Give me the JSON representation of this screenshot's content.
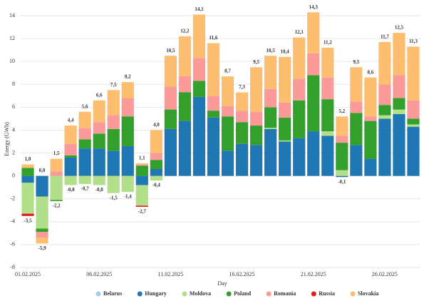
{
  "chart_data": {
    "type": "stacked_bar",
    "y_label": "Energy (GWh)",
    "x_label": "Day",
    "categories": [
      "01.02.2025",
      null,
      null,
      null,
      null,
      "06.02.2025",
      null,
      null,
      null,
      null,
      "11.02.2025",
      null,
      null,
      null,
      null,
      "16.02.2025",
      null,
      null,
      null,
      null,
      "21.02.2025",
      null,
      null,
      null,
      null,
      "26.02.2025",
      null,
      null
    ],
    "ylim": [
      -8,
      14
    ],
    "yticks": [
      -8,
      -6,
      -4,
      -2,
      0,
      2,
      4,
      6,
      8,
      10,
      12,
      14
    ],
    "grid": true,
    "series": [
      {
        "name": "Belarus",
        "color": "#a6cee3",
        "values": [
          0,
          0,
          0,
          0,
          0,
          0,
          0,
          0,
          0,
          0,
          0,
          0,
          0,
          0,
          0,
          0,
          0,
          0,
          0,
          0,
          0,
          0,
          0,
          0,
          0,
          0,
          0,
          0
        ]
      },
      {
        "name": "Hungary",
        "color": "#1f78b4",
        "values": [
          -0.6,
          -1.8,
          0,
          1.6,
          2.4,
          2.4,
          2.2,
          2.6,
          -0.8,
          0.6,
          4.1,
          4.8,
          6.9,
          5.1,
          2.2,
          2.8,
          2.7,
          4.1,
          3.0,
          3.3,
          3.9,
          3.5,
          -0.1,
          2.7,
          1.5,
          5.0,
          5.4,
          4.3
        ]
      },
      {
        "name": "Moldova",
        "color": "#b2df8a",
        "values": [
          -2.7,
          -2.8,
          -2.1,
          -0.8,
          -0.7,
          -0.8,
          -1.5,
          -1.4,
          -1.8,
          -0.4,
          0,
          0,
          0,
          0,
          0,
          0,
          0,
          0.1,
          0.1,
          0,
          0,
          0.4,
          0.5,
          0,
          0,
          0.3,
          0.4,
          0.2
        ]
      },
      {
        "name": "Poland",
        "color": "#33a02c",
        "values": [
          0.7,
          -0.3,
          -0.1,
          0.2,
          0.8,
          1.3,
          1.9,
          2.6,
          0.9,
          0.8,
          1.7,
          2.5,
          1.4,
          0.6,
          3.0,
          1.9,
          1.7,
          1.8,
          2.0,
          3.3,
          4.9,
          2.8,
          2.4,
          2.8,
          3.3,
          0.9,
          1.0,
          0.5
        ]
      },
      {
        "name": "Romania",
        "color": "#fb9a99",
        "values": [
          0,
          -0.5,
          0.4,
          1.0,
          1.0,
          1.0,
          1.2,
          1.6,
          0.1,
          0.6,
          2.0,
          1.4,
          2.0,
          1.3,
          0.9,
          1.0,
          1.2,
          1.6,
          1.3,
          1.9,
          1.9,
          1.9,
          0.6,
          1.0,
          0.4,
          1.8,
          2.0,
          1.6
        ]
      },
      {
        "name": "Russia",
        "color": "#e31a1c",
        "values": [
          -0.2,
          0,
          0,
          0,
          0,
          0,
          0,
          0,
          -0.1,
          0,
          0,
          0,
          0,
          0,
          0,
          0,
          0,
          0,
          0,
          0,
          0,
          0,
          0,
          0,
          0,
          0,
          0,
          0
        ]
      },
      {
        "name": "Slovakia",
        "color": "#fdbf6f",
        "values": [
          0.3,
          -0.5,
          1.1,
          1.6,
          1.4,
          1.9,
          2.2,
          1.4,
          0.1,
          2.0,
          2.7,
          3.5,
          3.8,
          4.6,
          2.6,
          1.6,
          3.9,
          2.9,
          4.0,
          3.6,
          3.6,
          2.6,
          1.7,
          3.0,
          3.4,
          3.7,
          3.7,
          4.7
        ]
      }
    ],
    "positive_totals": {
      "values": [
        1.0,
        0.0,
        1.5,
        4.4,
        5.6,
        6.6,
        7.5,
        8.2,
        1.1,
        4.0,
        10.5,
        12.2,
        14.1,
        11.6,
        8.7,
        7.3,
        9.5,
        10.5,
        10.4,
        12.1,
        14.3,
        11.2,
        5.2,
        9.5,
        8.6,
        11.7,
        12.5,
        11.3
      ],
      "value_labels": [
        "1,0",
        "0,0",
        "1,5",
        "4,4",
        "5,6",
        "6,6",
        "7,5",
        "8,2",
        "1,1",
        "4,0",
        "10,5",
        "12,2",
        "14,1",
        "11,6",
        "8,7",
        "7,3",
        "9,5",
        "10,5",
        "10,4",
        "12,1",
        "14,3",
        "11,2",
        "5,2",
        "9,5",
        "8,6",
        "11,7",
        "12,5",
        "11,3"
      ]
    },
    "negative_totals": {
      "values": [
        -3.5,
        -5.9,
        -2.2,
        -0.8,
        -0.7,
        -0.8,
        -1.5,
        -1.4,
        -2.7,
        -0.4,
        null,
        null,
        null,
        null,
        null,
        null,
        null,
        null,
        null,
        null,
        null,
        null,
        -0.1,
        null,
        null,
        null,
        null,
        null
      ],
      "value_labels": [
        "-3,5",
        "-5,9",
        "-2,2",
        "-0,8",
        "-0,7",
        "-0,8",
        "-1,5",
        "-1,4",
        "-2,7",
        "-0,4",
        null,
        null,
        null,
        null,
        null,
        null,
        null,
        null,
        null,
        null,
        null,
        null,
        "-0,1",
        null,
        null,
        null,
        null,
        null
      ]
    }
  }
}
